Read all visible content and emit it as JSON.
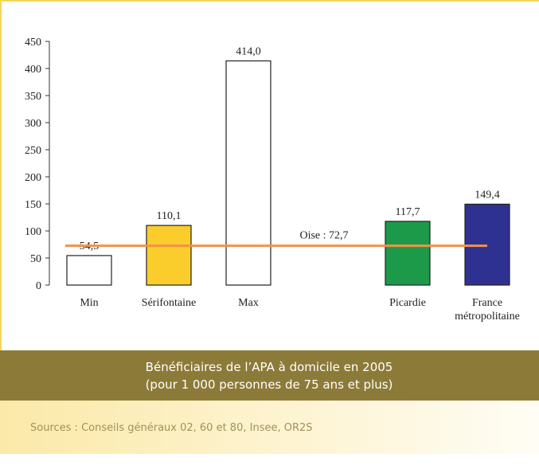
{
  "chart_data": {
    "type": "bar",
    "categories": [
      "Min",
      "Sérifontaine",
      "Max",
      null,
      "Picardie",
      "France métropolitaine"
    ],
    "values": [
      54.5,
      110.1,
      414.0,
      null,
      117.7,
      149.4
    ],
    "value_labels": [
      "54,5",
      "110,1",
      "414,0",
      null,
      "117,7",
      "149,4"
    ],
    "colors": [
      "#ffffff",
      "#fbcd2c",
      "#ffffff",
      null,
      "#1c9a4a",
      "#2e3192"
    ],
    "ylim": [
      0,
      450
    ],
    "yticks": [
      0,
      50,
      100,
      150,
      200,
      250,
      300,
      350,
      400,
      450
    ],
    "reference_line": {
      "label": "Oise : 72,7",
      "value": 72.7,
      "color": "#f39148"
    }
  },
  "caption": {
    "title": "Bénéficiaires de l’APA à domicile en 2005",
    "subtitle": "(pour 1 000 personnes de 75 ans et plus)"
  },
  "sources": "Sources : Conseils généraux 02, 60 et 80, Insee, OR2S"
}
